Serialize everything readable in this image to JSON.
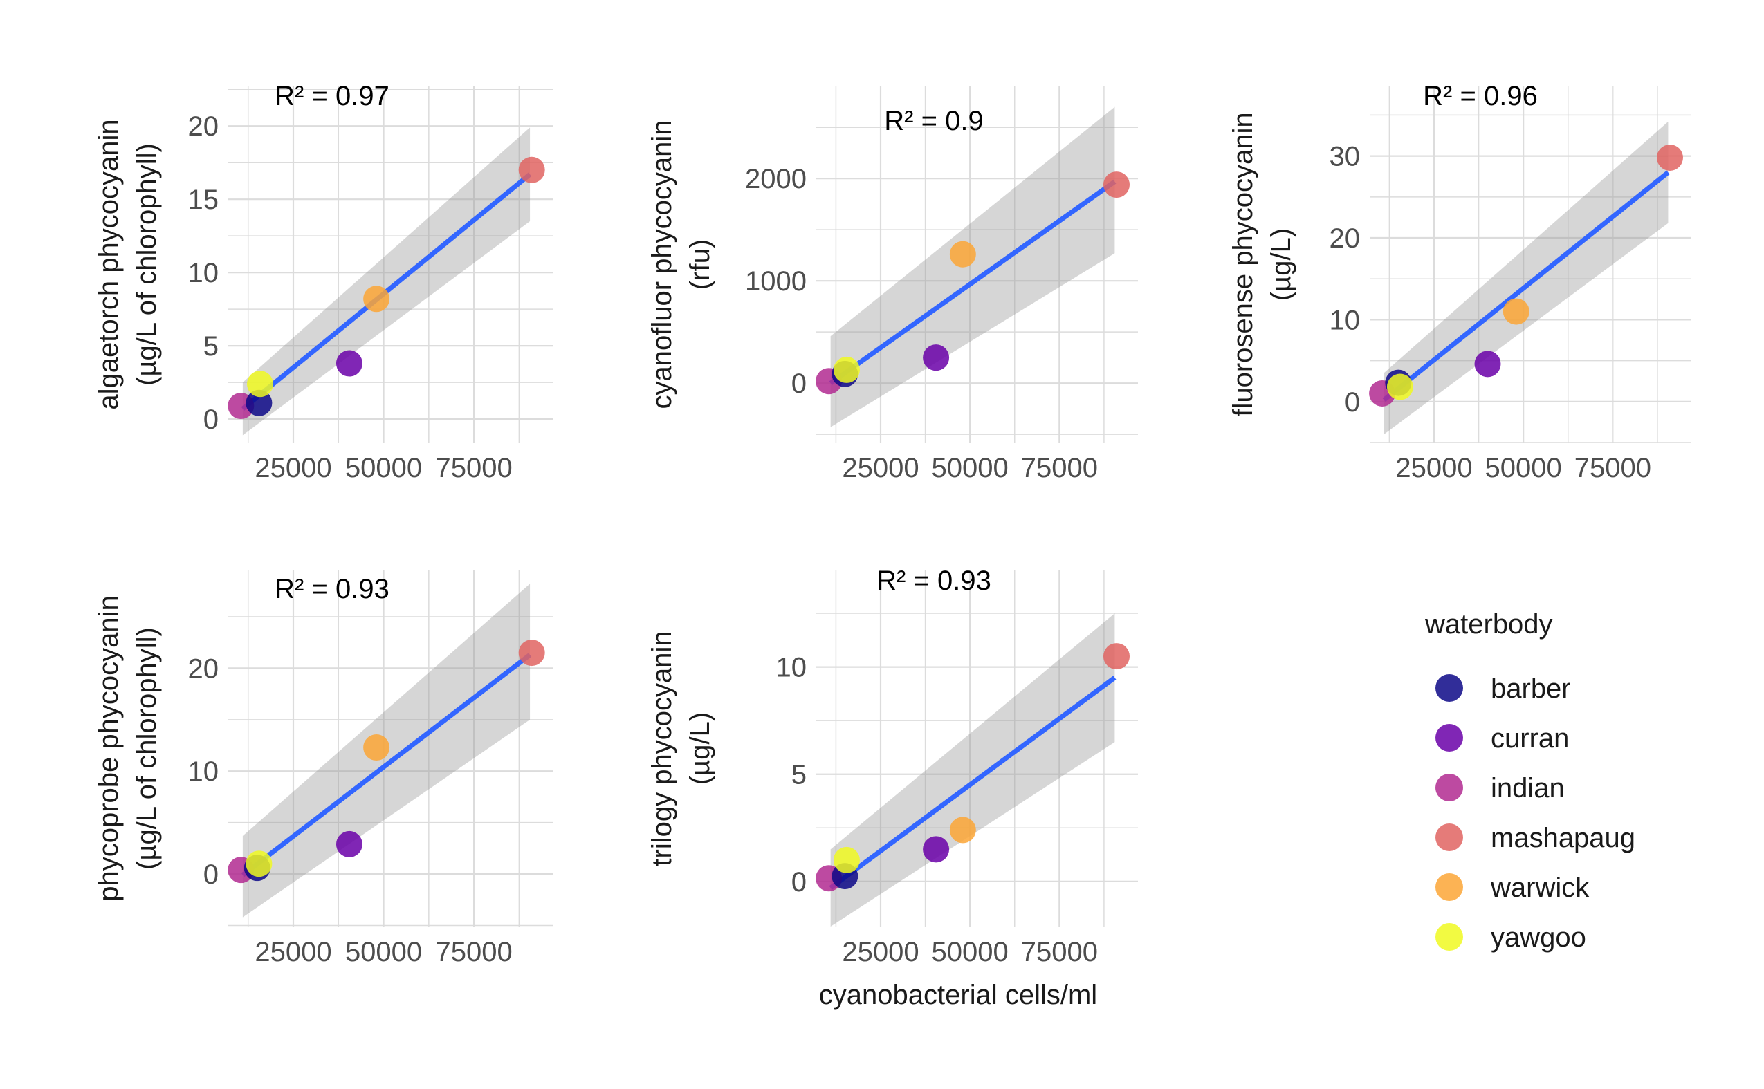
{
  "figure": {
    "x_axis_title": "cyanobacterial cells/ml"
  },
  "legend": {
    "title": "waterbody",
    "items": [
      {
        "name": "barber",
        "color": "#0d0887"
      },
      {
        "name": "curran",
        "color": "#6a00a8"
      },
      {
        "name": "indian",
        "color": "#b12a90"
      },
      {
        "name": "mashapaug",
        "color": "#e16462"
      },
      {
        "name": "warwick",
        "color": "#fca636"
      },
      {
        "name": "yawgoo",
        "color": "#f0f921"
      }
    ]
  },
  "colors": {
    "fit_line": "#3366ff",
    "confidence_band": "#999999",
    "grid": "#dcdcdc",
    "point_alpha": 0.85
  },
  "chart_data": [
    {
      "type": "scatter",
      "ylabel_line1": "algaetorch phycocyanin",
      "ylabel_line2": "(µg/L of chlorophyll)",
      "annotation": "R² = 0.97",
      "xlim": [
        7000,
        97000
      ],
      "ylim": [
        -1.6,
        22.7
      ],
      "x_ticks": [
        25000,
        50000,
        75000
      ],
      "x_tick_labels": [
        "25000",
        "50000",
        "75000"
      ],
      "y_ticks": [
        0,
        5,
        10,
        15,
        20
      ],
      "y_tick_labels": [
        "0",
        "5",
        "10",
        "15",
        "20"
      ],
      "points": [
        {
          "waterbody": "indian",
          "x": 10500,
          "y": 0.9
        },
        {
          "waterbody": "barber",
          "x": 15500,
          "y": 1.1
        },
        {
          "waterbody": "yawgoo",
          "x": 15800,
          "y": 2.4
        },
        {
          "waterbody": "curran",
          "x": 40500,
          "y": 3.8
        },
        {
          "waterbody": "warwick",
          "x": 48000,
          "y": 8.2
        },
        {
          "waterbody": "mashapaug",
          "x": 91000,
          "y": 17.0
        }
      ],
      "fit": {
        "x": [
          11000,
          90500
        ],
        "y": [
          0.7,
          16.7
        ]
      },
      "band": {
        "x": [
          11000,
          90500
        ],
        "lower_start": -1.1,
        "lower_end": 13.5,
        "upper_start": 2.5,
        "upper_end": 19.9
      }
    },
    {
      "type": "scatter",
      "ylabel_line1": "cyanofluor phycocyanin",
      "ylabel_line2": "(rfu)",
      "annotation": "R² = 0.9",
      "xlim": [
        7000,
        97000
      ],
      "ylim": [
        -580,
        2900
      ],
      "x_ticks": [
        25000,
        50000,
        75000
      ],
      "x_tick_labels": [
        "25000",
        "50000",
        "75000"
      ],
      "y_ticks": [
        0,
        1000,
        2000
      ],
      "y_tick_labels": [
        "0",
        "1000",
        "2000"
      ],
      "points": [
        {
          "waterbody": "indian",
          "x": 10500,
          "y": 20
        },
        {
          "waterbody": "barber",
          "x": 15000,
          "y": 90
        },
        {
          "waterbody": "yawgoo",
          "x": 15500,
          "y": 130
        },
        {
          "waterbody": "curran",
          "x": 40500,
          "y": 250
        },
        {
          "waterbody": "warwick",
          "x": 48000,
          "y": 1260
        },
        {
          "waterbody": "mashapaug",
          "x": 91000,
          "y": 1940
        }
      ],
      "fit": {
        "x": [
          11000,
          90500
        ],
        "y": [
          0,
          1970
        ]
      },
      "band": {
        "x": [
          11000,
          90500
        ],
        "lower_start": -430,
        "lower_end": 1270,
        "upper_start": 460,
        "upper_end": 2700
      }
    },
    {
      "type": "scatter",
      "ylabel_line1": "fluorosense phycocyanin",
      "ylabel_line2": "(µg/L)",
      "annotation": "R² = 0.96",
      "xlim": [
        7000,
        97000
      ],
      "ylim": [
        -5,
        38.5
      ],
      "x_ticks": [
        25000,
        50000,
        75000
      ],
      "x_tick_labels": [
        "25000",
        "50000",
        "75000"
      ],
      "y_ticks": [
        0,
        10,
        20,
        30
      ],
      "y_tick_labels": [
        "0",
        "10",
        "20",
        "30"
      ],
      "points": [
        {
          "waterbody": "indian",
          "x": 10500,
          "y": 1.0
        },
        {
          "waterbody": "barber",
          "x": 15000,
          "y": 2.3
        },
        {
          "waterbody": "yawgoo",
          "x": 15500,
          "y": 1.8
        },
        {
          "waterbody": "curran",
          "x": 40000,
          "y": 4.6
        },
        {
          "waterbody": "warwick",
          "x": 48000,
          "y": 11.0
        },
        {
          "waterbody": "mashapaug",
          "x": 91000,
          "y": 29.8
        }
      ],
      "fit": {
        "x": [
          11000,
          90500
        ],
        "y": [
          0.2,
          28.0
        ]
      },
      "band": {
        "x": [
          11000,
          90500
        ],
        "lower_start": -4.0,
        "lower_end": 21.8,
        "upper_start": 3.5,
        "upper_end": 34.2
      }
    },
    {
      "type": "scatter",
      "ylabel_line1": "phycoprobe phycocyanin",
      "ylabel_line2": "(µg/L of chlorophyll)",
      "annotation": "R² = 0.93",
      "xlim": [
        7000,
        97000
      ],
      "ylim": [
        -5.1,
        29.5
      ],
      "x_ticks": [
        25000,
        50000,
        75000
      ],
      "x_tick_labels": [
        "25000",
        "50000",
        "75000"
      ],
      "y_ticks": [
        0,
        10,
        20
      ],
      "y_tick_labels": [
        "0",
        "10",
        "20"
      ],
      "points": [
        {
          "waterbody": "indian",
          "x": 10500,
          "y": 0.4
        },
        {
          "waterbody": "barber",
          "x": 15000,
          "y": 0.6
        },
        {
          "waterbody": "yawgoo",
          "x": 15500,
          "y": 1.0
        },
        {
          "waterbody": "curran",
          "x": 40500,
          "y": 2.9
        },
        {
          "waterbody": "warwick",
          "x": 48000,
          "y": 12.3
        },
        {
          "waterbody": "mashapaug",
          "x": 91000,
          "y": 21.5
        }
      ],
      "fit": {
        "x": [
          11000,
          90500
        ],
        "y": [
          -0.1,
          21.3
        ]
      },
      "band": {
        "x": [
          11000,
          90500
        ],
        "lower_start": -4.2,
        "lower_end": 15.0,
        "upper_start": 3.7,
        "upper_end": 28.2
      }
    },
    {
      "type": "scatter",
      "ylabel_line1": "trilogy phycocyanin",
      "ylabel_line2": "(µg/L)",
      "annotation": "R² = 0.93",
      "xlim": [
        7000,
        97000
      ],
      "ylim": [
        -2.1,
        14.5
      ],
      "x_ticks": [
        25000,
        50000,
        75000
      ],
      "x_tick_labels": [
        "25000",
        "50000",
        "75000"
      ],
      "y_ticks": [
        0,
        5,
        10
      ],
      "y_tick_labels": [
        "0",
        "5",
        "10"
      ],
      "points": [
        {
          "waterbody": "indian",
          "x": 10500,
          "y": 0.15
        },
        {
          "waterbody": "barber",
          "x": 15000,
          "y": 0.25
        },
        {
          "waterbody": "yawgoo",
          "x": 15500,
          "y": 1.0
        },
        {
          "waterbody": "curran",
          "x": 40500,
          "y": 1.5
        },
        {
          "waterbody": "warwick",
          "x": 48000,
          "y": 2.4
        },
        {
          "waterbody": "mashapaug",
          "x": 91000,
          "y": 10.5
        }
      ],
      "fit": {
        "x": [
          11000,
          90500
        ],
        "y": [
          -0.3,
          9.5
        ]
      },
      "band": {
        "x": [
          11000,
          90500
        ],
        "lower_start": -2.1,
        "lower_end": 6.5,
        "upper_start": 1.5,
        "upper_end": 12.5
      }
    }
  ]
}
